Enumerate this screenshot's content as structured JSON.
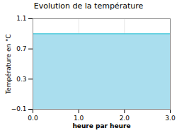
{
  "chart_data": {
    "type": "area",
    "title": "Evolution de la température",
    "x_label": "heure par heure",
    "y_label": "Température en °C",
    "x": [
      0,
      3
    ],
    "series": [
      {
        "type": "area",
        "color": "#aadeee",
        "values": [
          0.9,
          0.9
        ]
      },
      {
        "type": "line",
        "color": "#55ccdd",
        "values": [
          0.9,
          0.9
        ]
      }
    ],
    "xlim": [
      0,
      3
    ],
    "ylim": [
      -0.1,
      1.1
    ],
    "xticks": [
      0,
      1,
      2,
      3
    ],
    "yticks": [
      -0.1,
      0.3,
      0.7,
      1.1
    ],
    "grid": true
  }
}
